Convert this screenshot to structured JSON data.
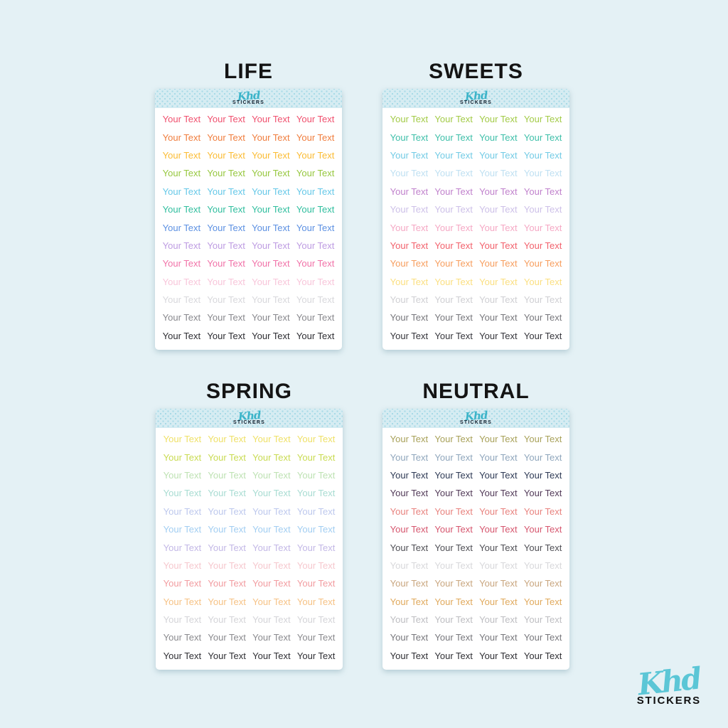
{
  "background_color": "#E4F1F5",
  "cell_text": "Your Text",
  "columns_per_row": 4,
  "brand": {
    "name": "Khd",
    "subtitle": "STICKERS",
    "header_script_color": "#3CB4C9",
    "header_subtitle_color": "#15202E",
    "footer_script_color": "#5BC6D6",
    "footer_subtitle_color": "#111111"
  },
  "sheet_header": {
    "background": "#D6ECF2",
    "dot_color": "#A6D9E6"
  },
  "sheets": [
    {
      "id": "life",
      "title": "LIFE",
      "row_colors": [
        "#F0506E",
        "#F07D3D",
        "#FBBC34",
        "#96C73E",
        "#66C8E8",
        "#2FBE9E",
        "#5C90E2",
        "#BE9CE2",
        "#F172A8",
        "#F8C6DA",
        "#D8D8DC",
        "#88888D",
        "#2D2D32"
      ]
    },
    {
      "id": "sweets",
      "title": "SWEETS",
      "row_colors": [
        "#A3CB47",
        "#3EBFA9",
        "#72CBE5",
        "#BFE0F2",
        "#C081CC",
        "#CDC0E8",
        "#F5A8C4",
        "#F2616C",
        "#F79E5E",
        "#FBDF80",
        "#CFCFD3",
        "#77777C",
        "#35353B"
      ]
    },
    {
      "id": "spring",
      "title": "SPRING",
      "row_colors": [
        "#EFE168",
        "#C9DB52",
        "#BEE2B3",
        "#A8DCD2",
        "#BDC8ED",
        "#A2CEF2",
        "#C3B8E6",
        "#F6C8CE",
        "#F29CA0",
        "#F6C285",
        "#D4D4D8",
        "#8A8A8E",
        "#2F2F34"
      ]
    },
    {
      "id": "neutral",
      "title": "NEUTRAL",
      "row_colors": [
        "#A8A159",
        "#8FA6BC",
        "#2E3A55",
        "#523A58",
        "#E8827E",
        "#D6566E",
        "#4F4F55",
        "#D8D8DB",
        "#C9A67F",
        "#E0A95C",
        "#BDBDC1",
        "#77777C",
        "#2E2E33"
      ]
    }
  ]
}
